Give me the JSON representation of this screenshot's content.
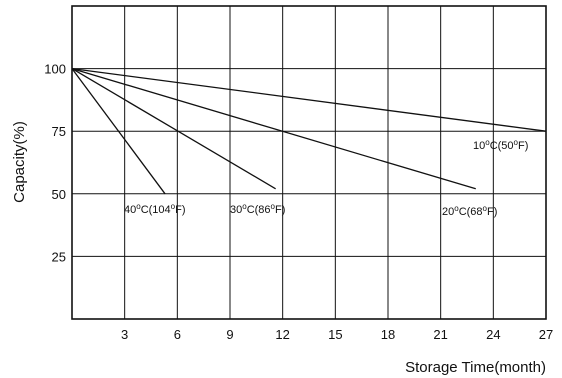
{
  "chart_data": {
    "type": "line",
    "title": "",
    "xlabel": "Storage Time(month)",
    "ylabel": "Capacity(%)",
    "xlim": [
      0,
      27
    ],
    "ylim": [
      0,
      125
    ],
    "x_ticks": [
      3,
      6,
      9,
      12,
      15,
      18,
      21,
      24,
      27
    ],
    "y_ticks": [
      25,
      50,
      75,
      100
    ],
    "grid": true,
    "series": [
      {
        "name": "10°C(50°F)",
        "label_parts": [
          "10",
          "C(50",
          "F)"
        ],
        "x": [
          0,
          27
        ],
        "y": [
          100,
          75
        ]
      },
      {
        "name": "20°C(68°F)",
        "label_parts": [
          "20",
          "C(68",
          "F)"
        ],
        "x": [
          0,
          23
        ],
        "y": [
          100,
          52
        ]
      },
      {
        "name": "30°C(86°F)",
        "label_parts": [
          "30",
          "C(86",
          "F)"
        ],
        "x": [
          0,
          11.6
        ],
        "y": [
          100,
          52
        ]
      },
      {
        "name": "40°C(104°F)",
        "label_parts": [
          "40",
          "C(104",
          "F)"
        ],
        "x": [
          0,
          5.3
        ],
        "y": [
          100,
          50
        ]
      }
    ]
  }
}
